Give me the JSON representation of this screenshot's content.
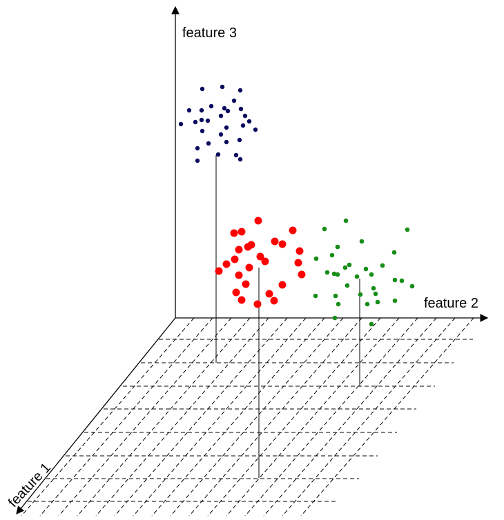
{
  "axes": {
    "x_label": "feature 1",
    "y_label": "feature 2",
    "z_label": "feature 3"
  },
  "colors": {
    "axis": "#000000",
    "grid": "#000000",
    "stem": "#000000"
  },
  "clusters": [
    {
      "color": "#0a0a5e",
      "marker": "small-dot"
    },
    {
      "color": "#ff0000",
      "marker": "large-dot"
    },
    {
      "color": "#178e17",
      "marker": "small-dot"
    }
  ]
}
